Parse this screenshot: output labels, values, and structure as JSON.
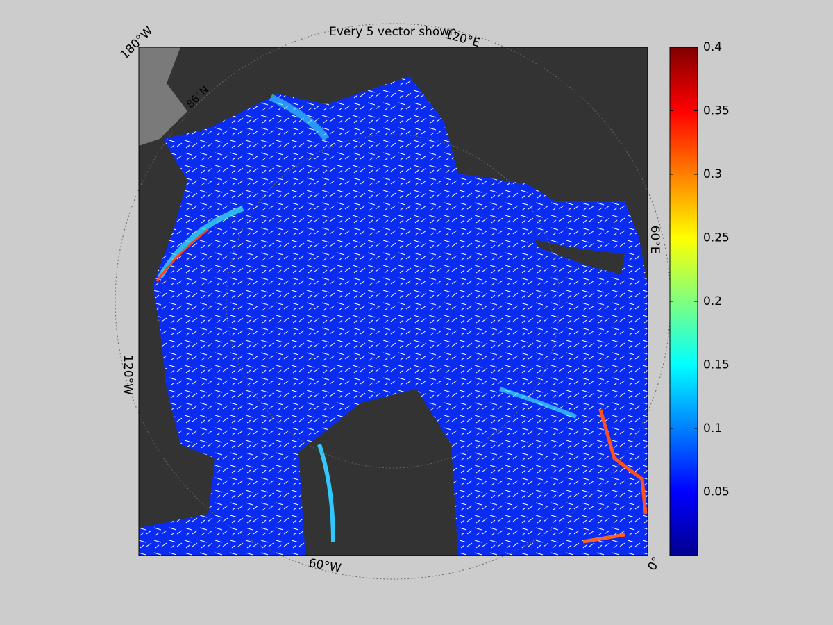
{
  "title": "Every 5 vector shown",
  "map": {
    "labels": [
      "180°W",
      "120°E",
      "60°E",
      "0°",
      "60°W",
      "120°W",
      "86°N"
    ]
  },
  "colorbar": {
    "colormap": "jet",
    "lim": [
      0,
      0.4
    ],
    "ticks": [
      0.05,
      0.1,
      0.15,
      0.2,
      0.25,
      0.3,
      0.35,
      0.4
    ]
  }
}
